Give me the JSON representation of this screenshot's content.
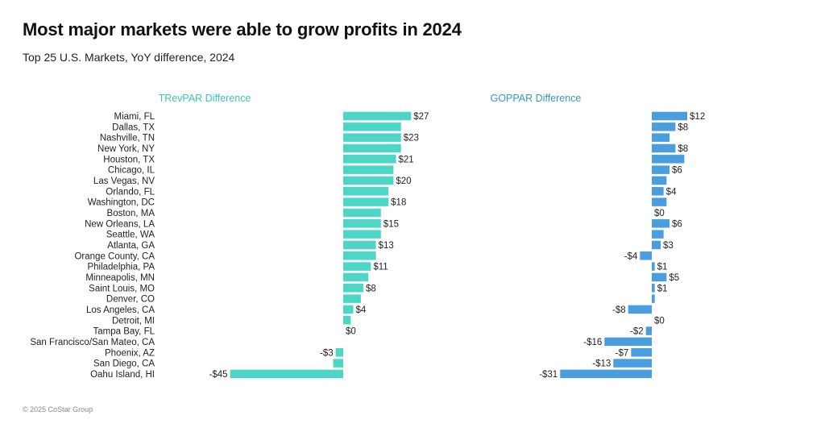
{
  "title": "Most major markets were able to grow profits in 2024",
  "subtitle": "Top 25 U.S. Markets, YoY difference, 2024",
  "footer": "© 2025 CoStar Group",
  "chart_data": {
    "type": "bar",
    "orientation": "horizontal",
    "categories": [
      "Miami, FL",
      "Dallas, TX",
      "Nashville, TN",
      "New York, NY",
      "Houston, TX",
      "Chicago, IL",
      "Las Vegas, NV",
      "Orlando, FL",
      "Washington, DC",
      "Boston, MA",
      "New Orleans, LA",
      "Seattle, WA",
      "Atlanta, GA",
      "Orange County, CA",
      "Philadelphia, PA",
      "Minneapolis, MN",
      "Saint Louis, MO",
      "Denver, CO",
      "Los Angeles, CA",
      "Detroit, MI",
      "Tampa Bay, FL",
      "San Francisco/San Mateo, CA",
      "Phoenix, AZ",
      "San Diego, CA",
      "Oahu Island, HI"
    ],
    "series": [
      {
        "name": "TRevPAR Difference",
        "color": "#4dd6c6",
        "title_color": "#3cc4bc",
        "values": [
          27,
          23,
          23,
          23,
          21,
          20,
          20,
          18,
          18,
          15,
          15,
          15,
          13,
          13,
          11,
          10,
          8,
          7,
          4,
          3,
          0,
          0,
          -3,
          -4,
          -45
        ],
        "data_labels": [
          "$27",
          "",
          "$23",
          "",
          "$21",
          "",
          "$20",
          "",
          "$18",
          "",
          "$15",
          "",
          "$13",
          "",
          "$11",
          "",
          "$8",
          "",
          "$4",
          "",
          "$0",
          "",
          "-$3",
          "",
          "-$45"
        ]
      },
      {
        "name": "GOPPAR Difference",
        "color": "#4a9ee0",
        "title_color": "#3a95cc",
        "values": [
          12,
          8,
          6,
          8,
          11,
          6,
          5,
          4,
          5,
          0,
          6,
          4,
          3,
          -4,
          1,
          5,
          1,
          1,
          -8,
          0,
          -2,
          -16,
          -7,
          -13,
          -31
        ],
        "data_labels": [
          "$12",
          "$8",
          "",
          "$8",
          "",
          "$6",
          "",
          "$4",
          "",
          "$0",
          "$6",
          "",
          "$3",
          "-$4",
          "$1",
          "$5",
          "$1",
          "",
          "-$8",
          "$0",
          "-$2",
          "-$16",
          "-$7",
          "-$13",
          "-$31"
        ]
      }
    ],
    "xlabel": "",
    "ylabel": "",
    "grid": false,
    "legend": "none"
  }
}
